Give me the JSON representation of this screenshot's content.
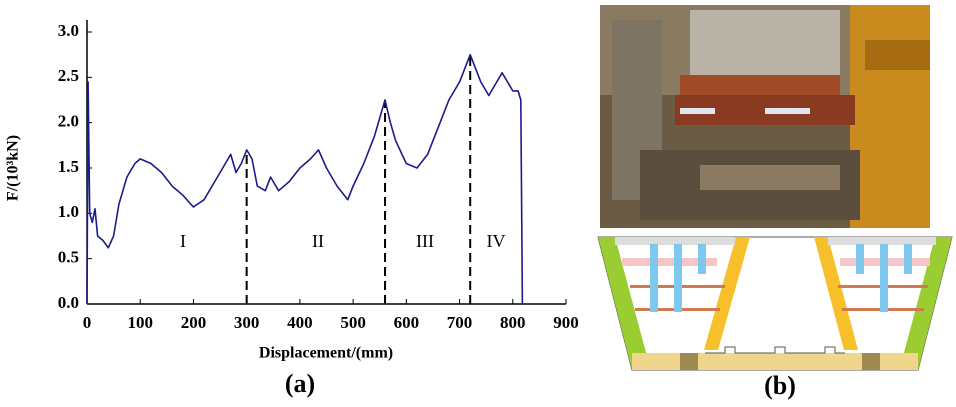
{
  "chart_data": {
    "type": "line",
    "x_label": "Displacement/(mm)",
    "y_label": "F/(10³kN)",
    "panel_labels": [
      "(a)",
      "(b)"
    ],
    "region_labels": [
      "I",
      "II",
      "III",
      "IV"
    ],
    "dividers": [
      300,
      560,
      720
    ],
    "color": "#1c1c8a",
    "xlim": [
      0,
      900
    ],
    "xticks": [
      0,
      100,
      200,
      300,
      400,
      500,
      600,
      700,
      800,
      900
    ],
    "ylim": [
      0,
      3.0
    ],
    "yticks": [
      {
        "value": 0,
        "label": "0.0"
      },
      0.5,
      {
        "value": 1,
        "label": "1.0"
      },
      1.5,
      {
        "value": 2,
        "label": "2.0"
      },
      2.5,
      {
        "value": 3,
        "label": "3.0"
      }
    ],
    "x": [
      0,
      2,
      5,
      10,
      15,
      20,
      30,
      40,
      50,
      60,
      75,
      90,
      100,
      120,
      140,
      160,
      180,
      200,
      220,
      240,
      260,
      270,
      280,
      290,
      300,
      310,
      320,
      335,
      345,
      360,
      380,
      400,
      420,
      435,
      450,
      470,
      490,
      500,
      520,
      540,
      560,
      570,
      580,
      600,
      620,
      640,
      660,
      680,
      700,
      720,
      730,
      740,
      755,
      770,
      780,
      790,
      800,
      810,
      815,
      818
    ],
    "values": [
      0,
      2.45,
      1.0,
      0.9,
      1.05,
      0.75,
      0.7,
      0.62,
      0.75,
      1.1,
      1.4,
      1.55,
      1.6,
      1.55,
      1.45,
      1.3,
      1.2,
      1.07,
      1.15,
      1.35,
      1.55,
      1.65,
      1.45,
      1.55,
      1.7,
      1.6,
      1.3,
      1.25,
      1.4,
      1.25,
      1.35,
      1.5,
      1.6,
      1.7,
      1.5,
      1.3,
      1.15,
      1.3,
      1.55,
      1.85,
      2.25,
      2.0,
      1.8,
      1.55,
      1.5,
      1.65,
      1.95,
      2.25,
      2.45,
      2.75,
      2.6,
      2.45,
      2.3,
      2.45,
      2.55,
      2.45,
      2.35,
      2.35,
      2.25,
      0
    ]
  }
}
